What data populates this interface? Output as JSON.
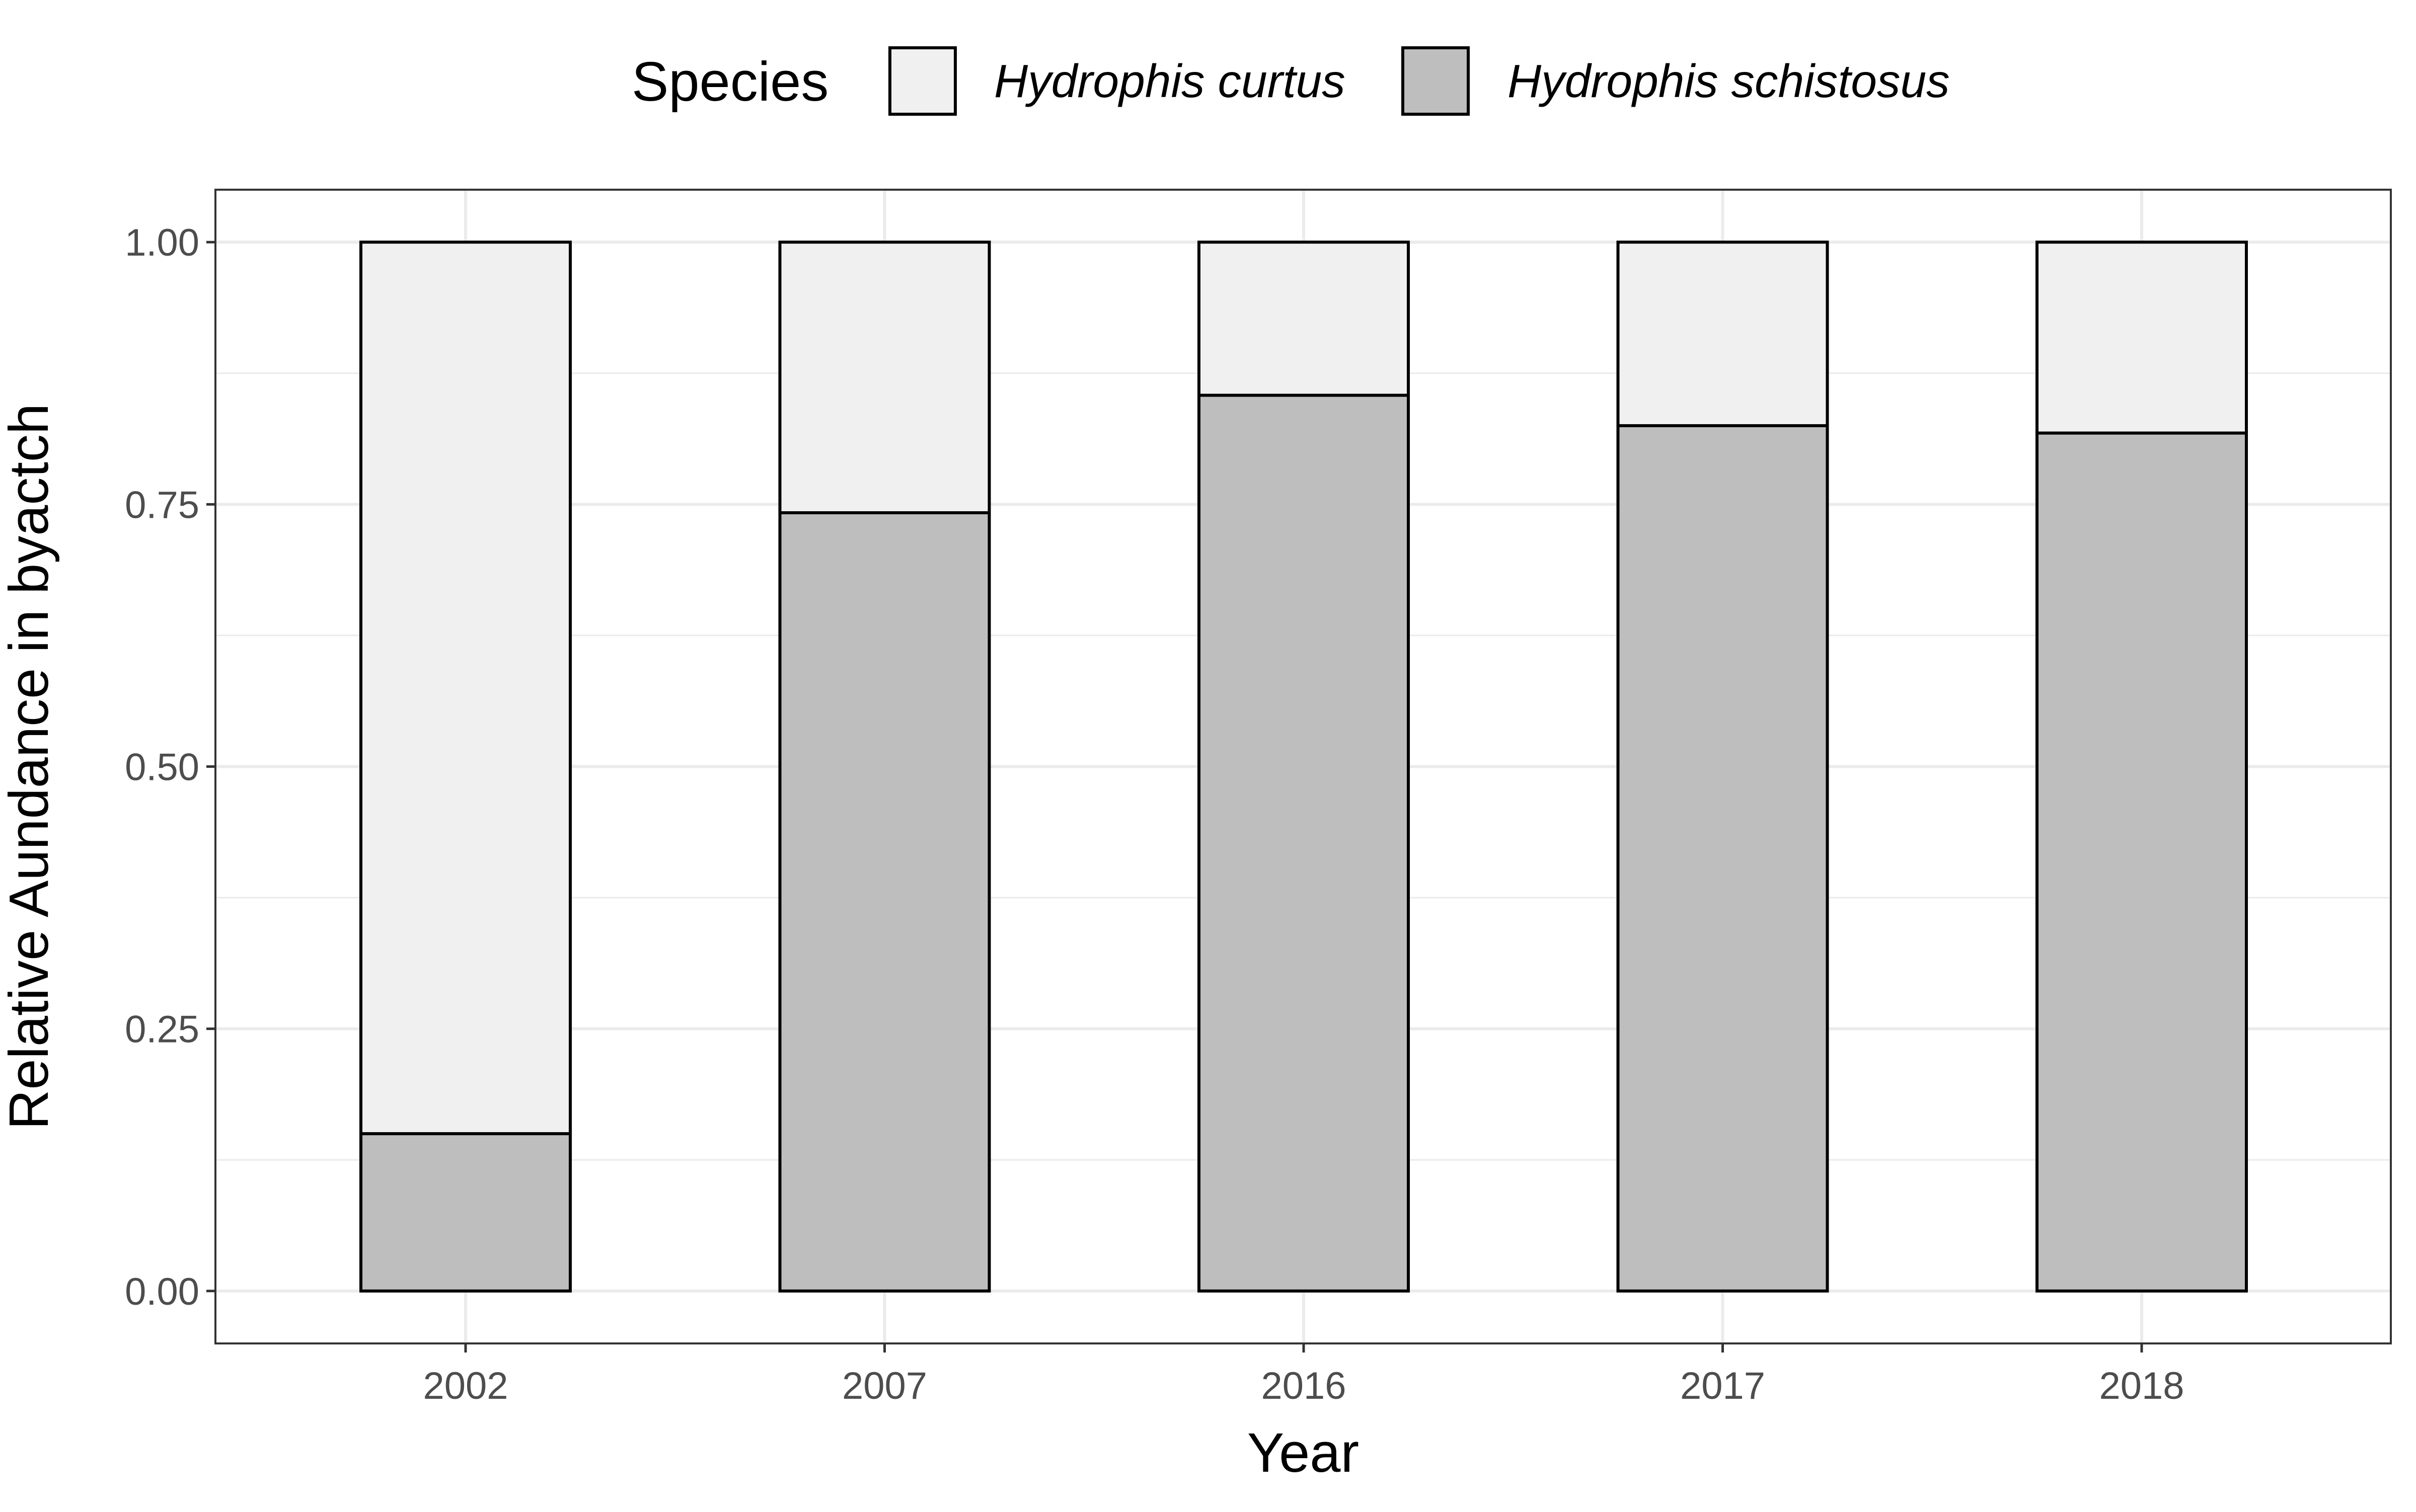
{
  "chart_data": {
    "type": "bar",
    "stacked": true,
    "xlabel": "Year",
    "ylabel": "Relative Aundance in byactch",
    "categories": [
      "2002",
      "2007",
      "2016",
      "2017",
      "2018"
    ],
    "series": [
      {
        "name": "Hydrophis schistosus",
        "values": [
          0.15,
          0.742,
          0.854,
          0.825,
          0.818
        ],
        "color": "#bebebe"
      },
      {
        "name": "Hydrophis curtus",
        "values": [
          0.85,
          0.258,
          0.146,
          0.175,
          0.182
        ],
        "color": "#f0f0f0"
      }
    ],
    "ylim": [
      -0.05,
      1.05
    ],
    "yticks": [
      0.0,
      0.25,
      0.5,
      0.75,
      1.0
    ],
    "ytick_labels": [
      "0.00",
      "0.25",
      "0.50",
      "0.75",
      "1.00"
    ],
    "grid": true,
    "legend": {
      "title": "Species",
      "position": "top",
      "entries": [
        "Hydrophis curtus",
        "Hydrophis schistosus"
      ]
    }
  }
}
